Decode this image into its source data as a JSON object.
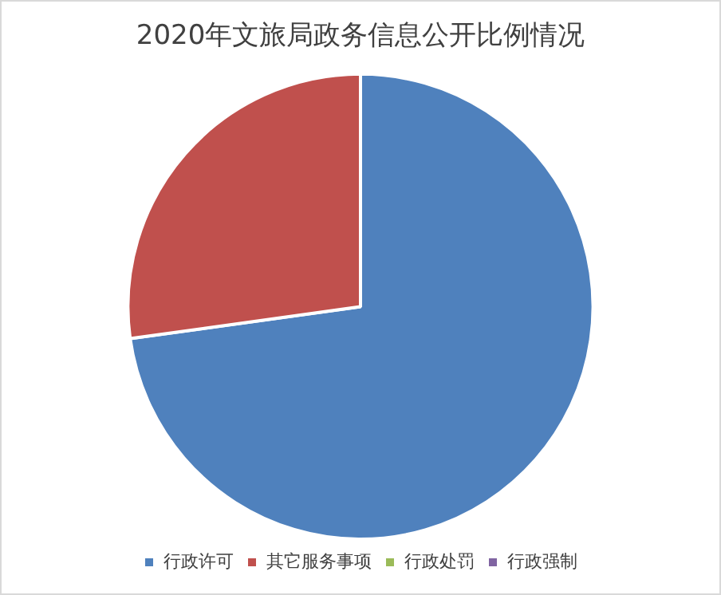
{
  "chart_data": {
    "type": "pie",
    "title": "2020年文旅局政务信息公开比例情况",
    "categories": [
      "行政许可",
      "其它服务事项",
      "行政处罚",
      "行政强制"
    ],
    "values": [
      72.8,
      27.2,
      0,
      0
    ],
    "colors": [
      "#4f81bd",
      "#c0504d",
      "#9bbb59",
      "#8064a2"
    ],
    "legend": "bottom"
  }
}
